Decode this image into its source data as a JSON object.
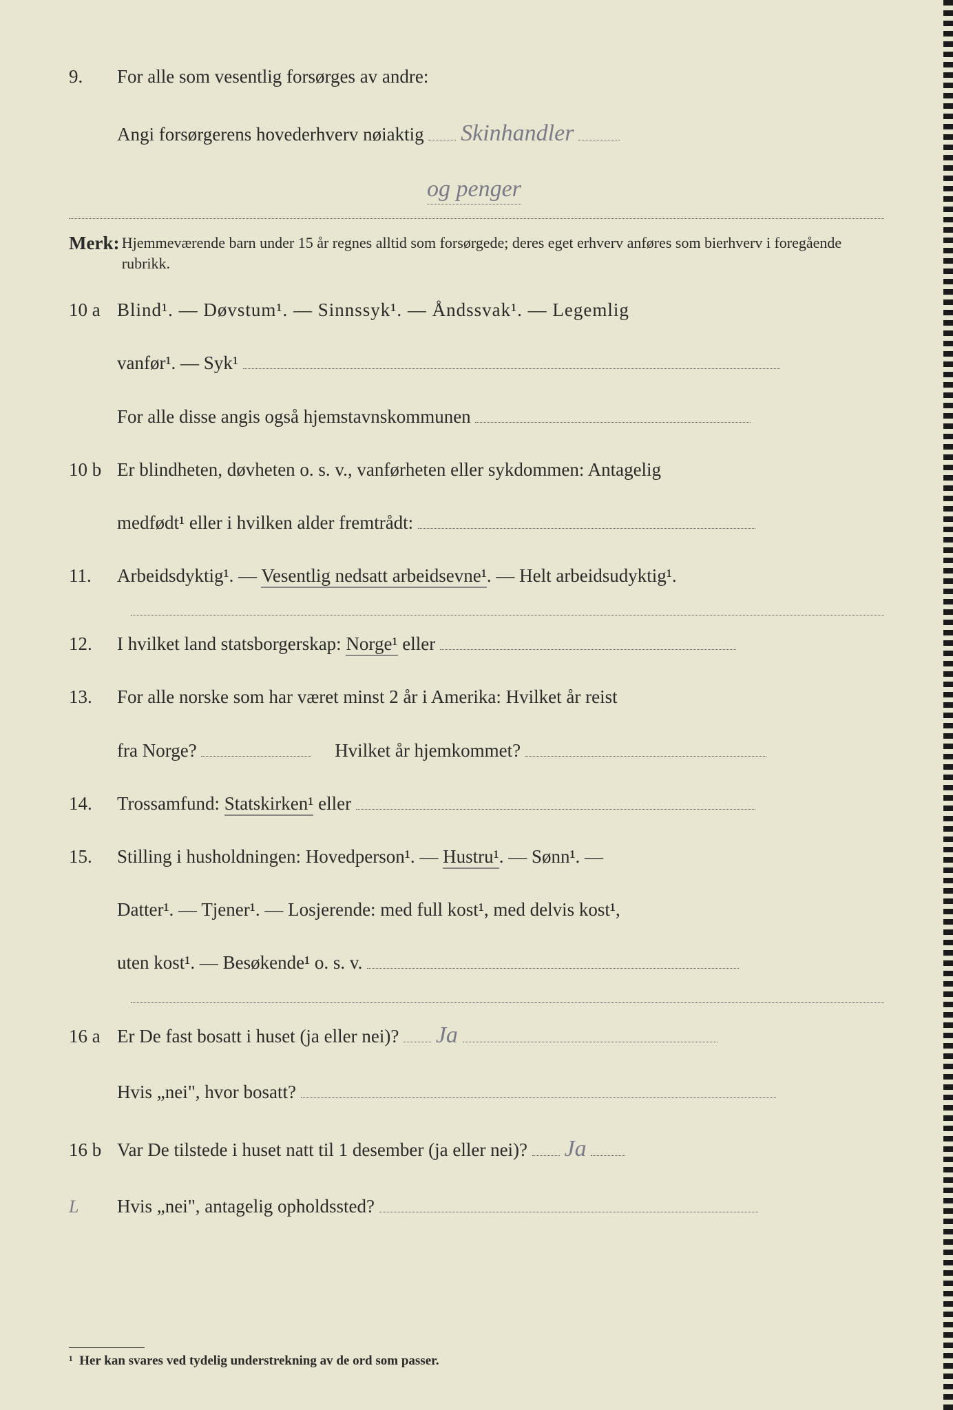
{
  "q9": {
    "num": "9.",
    "line1": "For alle som vesentlig forsørges av andre:",
    "line2_prefix": "Angi forsørgerens hovederhverv nøiaktig",
    "handwriting1": "Skinhandler",
    "handwriting2": "og penger"
  },
  "merk": {
    "label": "Merk:",
    "text": "Hjemmeværende barn under 15 år regnes alltid som forsørgede; deres eget erhverv anføres som bierhverv i foregående rubrikk."
  },
  "q10a": {
    "num": "10 a",
    "line1": "Blind¹.  —  Døvstum¹.  —  Sinnssyk¹.  —  Åndssvak¹.  —  Legemlig",
    "line2_prefix": "vanfør¹.  —  Syk¹",
    "line3_prefix": "For alle disse angis også hjemstavnskommunen"
  },
  "q10b": {
    "num": "10 b",
    "line1": "Er blindheten, døvheten o. s. v., vanførheten eller sykdommen: Antagelig",
    "line2_prefix": "medfødt¹ eller i hvilken alder fremtrådt:"
  },
  "q11": {
    "num": "11.",
    "text_a": "Arbeidsdyktig¹. — ",
    "text_b_underlined": "Vesentlig nedsatt arbeidsevne¹",
    "text_c": ". — Helt arbeidsudyktig¹."
  },
  "q12": {
    "num": "12.",
    "text_a": "I hvilket land statsborgerskap: ",
    "text_b_underlined": "Norge¹",
    "text_c": " eller"
  },
  "q13": {
    "num": "13.",
    "line1": "For alle norske som har været minst 2 år i Amerika: Hvilket år reist",
    "line2_a": "fra Norge?",
    "line2_b": "Hvilket år hjemkommet?"
  },
  "q14": {
    "num": "14.",
    "text_a": "Trossamfund:  ",
    "text_b_underlined": "Statskirken¹",
    "text_c": " eller"
  },
  "q15": {
    "num": "15.",
    "line1_a": "Stilling i husholdningen: Hovedperson¹.  —  ",
    "line1_b_underlined": "Hustru¹",
    "line1_c": ".  —  Sønn¹.  —",
    "line2": "Datter¹.  —  Tjener¹.  —  Losjerende:  med full kost¹, med delvis kost¹,",
    "line3_prefix": "uten kost¹.  —  Besøkende¹  o. s. v."
  },
  "q16a": {
    "num": "16 a",
    "line1_prefix": "Er De fast bosatt i huset (ja eller nei)?",
    "handwriting": "Ja",
    "line2_prefix": "Hvis „nei\", hvor bosatt?"
  },
  "q16b": {
    "num": "16 b",
    "line1_prefix": "Var De tilstede i huset natt til 1 desember (ja eller nei)?",
    "handwriting": "Ja",
    "line2_prefix": "Hvis „nei\", antagelig opholdssted?",
    "mark": "L"
  },
  "footnote": {
    "marker": "¹",
    "text": "Her kan svares ved tydelig understrekning av de ord som passer."
  }
}
